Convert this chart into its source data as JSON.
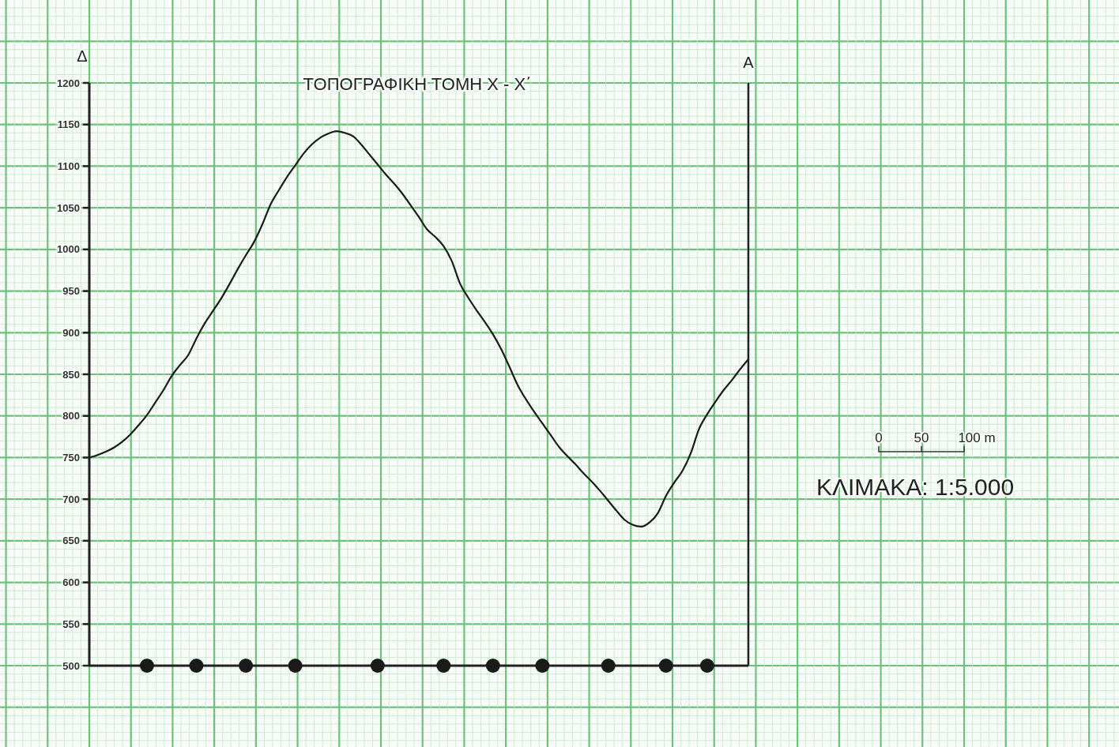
{
  "chart_data": {
    "type": "line",
    "title": "ΤΟΠΟΓΡΑΦΙΚΗ ΤΟΜΗ Χ - Χ΄",
    "categories": [
      null,
      null,
      null,
      null,
      null,
      null,
      null,
      null,
      null,
      null,
      null,
      null,
      null,
      null,
      null,
      null,
      null,
      null,
      null,
      null,
      null,
      null,
      null,
      null,
      null,
      null,
      null,
      null,
      null,
      null,
      null,
      null,
      null,
      null,
      null,
      null,
      null,
      null,
      null,
      null,
      null,
      null,
      null,
      null,
      null,
      null,
      null,
      null,
      null,
      null,
      null,
      null,
      null,
      null,
      null,
      null,
      null,
      null,
      null,
      null,
      null,
      null,
      null,
      null,
      null,
      null,
      null,
      null,
      null,
      null,
      null,
      null,
      null,
      null,
      null,
      null,
      null,
      null,
      null,
      null,
      null
    ],
    "series": [
      {
        "color": "#1a1a1a",
        "values": [
          750,
          753,
          757,
          762,
          769,
          778,
          789,
          801,
          816,
          831,
          848,
          861,
          873,
          893,
          911,
          926,
          941,
          958,
          976,
          993,
          1009,
          1030,
          1054,
          1071,
          1087,
          1101,
          1115,
          1126,
          1134,
          1139,
          1142,
          1140,
          1136,
          1126,
          1114,
          1102,
          1090,
          1079,
          1067,
          1053,
          1039,
          1024,
          1015,
          1004,
          986,
          959,
          942,
          927,
          913,
          898,
          880,
          859,
          837,
          820,
          805,
          791,
          777,
          763,
          752,
          742,
          731,
          721,
          710,
          698,
          686,
          675,
          669,
          667,
          672,
          683,
          704,
          720,
          734,
          755,
          784,
          802,
          817,
          831,
          843,
          856,
          868
        ]
      },
      {
        "type": "scatter",
        "color": "#1a1a1a",
        "marker": "circle",
        "values": [
          null,
          null,
          null,
          null,
          null,
          null,
          null,
          500,
          null,
          null,
          null,
          null,
          null,
          500,
          null,
          null,
          null,
          null,
          null,
          500,
          null,
          null,
          null,
          null,
          null,
          500,
          null,
          null,
          null,
          null,
          null,
          null,
          null,
          null,
          null,
          500,
          null,
          null,
          null,
          null,
          null,
          null,
          null,
          500,
          null,
          null,
          null,
          null,
          null,
          500,
          null,
          null,
          null,
          null,
          null,
          500,
          null,
          null,
          null,
          null,
          null,
          null,
          null,
          500,
          null,
          null,
          null,
          null,
          null,
          null,
          500,
          null,
          null,
          null,
          null,
          500,
          null,
          null,
          null,
          null,
          null
        ]
      }
    ],
    "ylim": [
      500,
      1200
    ],
    "yticks": [
      500,
      550,
      600,
      650,
      700,
      750,
      800,
      850,
      900,
      950,
      1000,
      1050,
      1100,
      1150,
      1200
    ],
    "grid": true,
    "tick_labels": "y",
    "annotations": [
      "Δ",
      "Α",
      "0",
      "50",
      "100 m",
      "ΚΛΙΜΑΚΑ: 1:5.000"
    ]
  }
}
